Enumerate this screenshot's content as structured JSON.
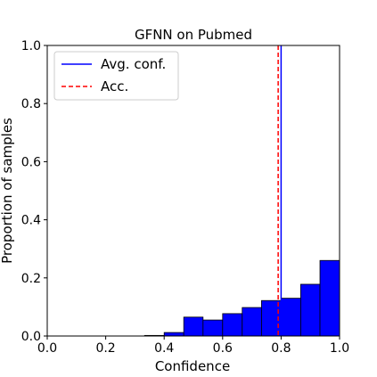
{
  "chart_data": {
    "type": "bar",
    "title": "GFNN on Pubmed",
    "xlabel": "Confidence",
    "ylabel": "Proportion of samples",
    "xlim": [
      0.0,
      1.0
    ],
    "ylim": [
      0.0,
      1.0
    ],
    "xticks": [
      "0.0",
      "0.2",
      "0.4",
      "0.6",
      "0.8",
      "1.0"
    ],
    "yticks": [
      "0.0",
      "0.2",
      "0.4",
      "0.6",
      "0.8",
      "1.0"
    ],
    "grid": false,
    "bin_width": 0.0667,
    "bins": [
      {
        "start": 0.333,
        "end": 0.4,
        "value": 0.002
      },
      {
        "start": 0.4,
        "end": 0.467,
        "value": 0.012
      },
      {
        "start": 0.467,
        "end": 0.533,
        "value": 0.065
      },
      {
        "start": 0.533,
        "end": 0.6,
        "value": 0.055
      },
      {
        "start": 0.6,
        "end": 0.667,
        "value": 0.077
      },
      {
        "start": 0.667,
        "end": 0.733,
        "value": 0.098
      },
      {
        "start": 0.733,
        "end": 0.8,
        "value": 0.122
      },
      {
        "start": 0.8,
        "end": 0.867,
        "value": 0.13
      },
      {
        "start": 0.867,
        "end": 0.933,
        "value": 0.178
      },
      {
        "start": 0.933,
        "end": 1.0,
        "value": 0.26
      }
    ],
    "bar_color": "#0000ff",
    "avg_conf": 0.8,
    "accuracy": 0.79,
    "avg_conf_color": "#0000ff",
    "acc_color": "#ff0000",
    "legend": {
      "placement": "top-left",
      "entries": [
        {
          "label": "Avg. conf.",
          "style": "solid",
          "color": "#0000ff"
        },
        {
          "label": "Acc.",
          "style": "dashed",
          "color": "#ff0000"
        }
      ]
    }
  }
}
